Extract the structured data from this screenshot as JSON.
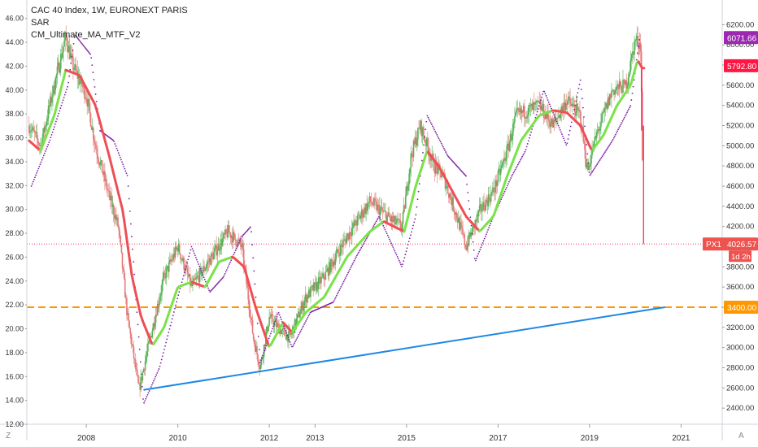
{
  "legend": {
    "symbol": "CAC 40 Index, 1W, EURONEXT PARIS",
    "indicator1": "SAR",
    "indicator2": "CM_Ultimate_MA_MTF_V2"
  },
  "corner": {
    "left": "Z",
    "right": "A"
  },
  "chart_data": {
    "type": "line",
    "colors": {
      "candle_up": "#4caf50",
      "candle_down": "#e57373",
      "ma_up": "#7ae24a",
      "ma_down": "#ee4f55",
      "sar": "#7b1fa2",
      "trendline": "#1e88e5",
      "support": "#ff9800",
      "axis_text": "#333333",
      "price_tag": "#ff1744",
      "current_tag": "#9c27b0"
    },
    "xlim": [
      2006.7,
      2021.9
    ],
    "x_ticks": [
      "2008",
      "2010",
      "2012",
      "2013",
      "2015",
      "2017",
      "2019",
      "2021"
    ],
    "x_tick_values": [
      2008,
      2010,
      2012,
      2013,
      2015,
      2017,
      2019,
      2021
    ],
    "left_axis": {
      "ylim": [
        12,
        47
      ],
      "ticks": [
        "12.00",
        "14.00",
        "16.00",
        "18.00",
        "20.00",
        "22.00",
        "24.00",
        "26.00",
        "28.00",
        "30.00",
        "32.00",
        "34.00",
        "36.00",
        "38.00",
        "40.00",
        "42.00",
        "44.00",
        "46.00"
      ]
    },
    "right_axis": {
      "ylim": [
        2240,
        6380
      ],
      "ticks": [
        "2400.00",
        "2600.00",
        "2800.00",
        "3000.00",
        "3200.00",
        "3400.00",
        "3600.00",
        "3800.00",
        "4000.00",
        "4200.00",
        "4400.00",
        "4600.00",
        "4800.00",
        "5000.00",
        "5200.00",
        "5400.00",
        "5600.00",
        "5800.00",
        "6000.00",
        "6200.00"
      ]
    },
    "price_path": [
      [
        2006.75,
        5200
      ],
      [
        2007.0,
        5000
      ],
      [
        2007.3,
        5600
      ],
      [
        2007.55,
        6080
      ],
      [
        2007.7,
        5800
      ],
      [
        2008.0,
        5500
      ],
      [
        2008.2,
        5000
      ],
      [
        2008.5,
        4500
      ],
      [
        2008.7,
        4200
      ],
      [
        2008.9,
        3300
      ],
      [
        2009.15,
        2580
      ],
      [
        2009.4,
        3100
      ],
      [
        2009.7,
        3700
      ],
      [
        2010.0,
        4000
      ],
      [
        2010.3,
        3600
      ],
      [
        2010.6,
        3800
      ],
      [
        2011.1,
        4150
      ],
      [
        2011.4,
        4000
      ],
      [
        2011.65,
        3100
      ],
      [
        2011.8,
        2800
      ],
      [
        2012.0,
        3300
      ],
      [
        2012.3,
        3150
      ],
      [
        2012.45,
        3100
      ],
      [
        2012.8,
        3500
      ],
      [
        2013.2,
        3700
      ],
      [
        2013.7,
        4100
      ],
      [
        2014.2,
        4450
      ],
      [
        2014.7,
        4250
      ],
      [
        2014.9,
        4200
      ],
      [
        2015.1,
        4900
      ],
      [
        2015.3,
        5200
      ],
      [
        2015.6,
        4800
      ],
      [
        2015.8,
        4700
      ],
      [
        2016.1,
        4300
      ],
      [
        2016.3,
        4000
      ],
      [
        2016.6,
        4350
      ],
      [
        2016.9,
        4550
      ],
      [
        2017.2,
        4950
      ],
      [
        2017.4,
        5300
      ],
      [
        2017.9,
        5400
      ],
      [
        2018.2,
        5200
      ],
      [
        2018.5,
        5450
      ],
      [
        2018.8,
        5300
      ],
      [
        2018.95,
        4750
      ],
      [
        2019.15,
        5100
      ],
      [
        2019.5,
        5550
      ],
      [
        2019.8,
        5600
      ],
      [
        2020.0,
        6050
      ],
      [
        2020.12,
        6000
      ],
      [
        2020.18,
        4026.57
      ]
    ],
    "ma_path": [
      [
        2006.75,
        5050
      ],
      [
        2007.0,
        4950
      ],
      [
        2007.3,
        5300
      ],
      [
        2007.55,
        5750
      ],
      [
        2007.85,
        5700
      ],
      [
        2008.2,
        5400
      ],
      [
        2008.5,
        4900
      ],
      [
        2008.8,
        4350
      ],
      [
        2009.0,
        3700
      ],
      [
        2009.2,
        3300
      ],
      [
        2009.45,
        3020
      ],
      [
        2009.7,
        3200
      ],
      [
        2010.0,
        3600
      ],
      [
        2010.3,
        3650
      ],
      [
        2010.6,
        3600
      ],
      [
        2010.9,
        3850
      ],
      [
        2011.2,
        3900
      ],
      [
        2011.45,
        3800
      ],
      [
        2011.7,
        3400
      ],
      [
        2012.0,
        3000
      ],
      [
        2012.3,
        3250
      ],
      [
        2012.5,
        3150
      ],
      [
        2012.8,
        3350
      ],
      [
        2013.2,
        3500
      ],
      [
        2013.7,
        3900
      ],
      [
        2014.2,
        4150
      ],
      [
        2014.5,
        4250
      ],
      [
        2014.95,
        4150
      ],
      [
        2015.2,
        4600
      ],
      [
        2015.45,
        4950
      ],
      [
        2015.7,
        4800
      ],
      [
        2016.0,
        4550
      ],
      [
        2016.3,
        4300
      ],
      [
        2016.6,
        4150
      ],
      [
        2016.9,
        4300
      ],
      [
        2017.2,
        4700
      ],
      [
        2017.5,
        5050
      ],
      [
        2017.9,
        5300
      ],
      [
        2018.2,
        5350
      ],
      [
        2018.5,
        5330
      ],
      [
        2018.8,
        5200
      ],
      [
        2019.05,
        4950
      ],
      [
        2019.3,
        5100
      ],
      [
        2019.6,
        5400
      ],
      [
        2019.9,
        5600
      ],
      [
        2020.05,
        5850
      ],
      [
        2020.15,
        5770
      ]
    ],
    "sar_path": [
      [
        2006.8,
        4600
      ],
      [
        2007.2,
        5050
      ],
      [
        2007.6,
        5600
      ],
      [
        2007.75,
        6100
      ],
      [
        2008.1,
        5900
      ],
      [
        2008.3,
        5150
      ],
      [
        2008.6,
        5050
      ],
      [
        2008.9,
        4700
      ],
      [
        2009.1,
        3400
      ],
      [
        2009.25,
        2440
      ],
      [
        2009.6,
        2800
      ],
      [
        2010.0,
        3500
      ],
      [
        2010.3,
        4000
      ],
      [
        2010.7,
        3550
      ],
      [
        2011.0,
        3700
      ],
      [
        2011.4,
        4100
      ],
      [
        2011.6,
        4200
      ],
      [
        2011.8,
        2850
      ],
      [
        2012.2,
        3350
      ],
      [
        2012.5,
        3000
      ],
      [
        2012.9,
        3350
      ],
      [
        2013.4,
        3450
      ],
      [
        2013.9,
        3900
      ],
      [
        2014.4,
        4300
      ],
      [
        2014.9,
        3800
      ],
      [
        2015.2,
        4300
      ],
      [
        2015.45,
        5300
      ],
      [
        2015.9,
        4900
      ],
      [
        2016.3,
        4700
      ],
      [
        2016.5,
        3850
      ],
      [
        2016.9,
        4300
      ],
      [
        2017.3,
        4700
      ],
      [
        2017.6,
        4950
      ],
      [
        2018.0,
        5550
      ],
      [
        2018.5,
        5000
      ],
      [
        2018.8,
        5650
      ],
      [
        2019.0,
        4700
      ],
      [
        2019.5,
        5050
      ],
      [
        2019.9,
        5400
      ],
      [
        2020.1,
        6090
      ]
    ],
    "trendline": [
      [
        2009.25,
        2580
      ],
      [
        2020.65,
        3400
      ]
    ],
    "support": {
      "value": 3400
    },
    "annotations": {
      "current_price_label": "6071.66",
      "last_close_label": "5792.80",
      "support_label": "3400.00",
      "live_price_label": "4026.57",
      "live_price_name": "PX1",
      "countdown": "1d 2h"
    }
  }
}
